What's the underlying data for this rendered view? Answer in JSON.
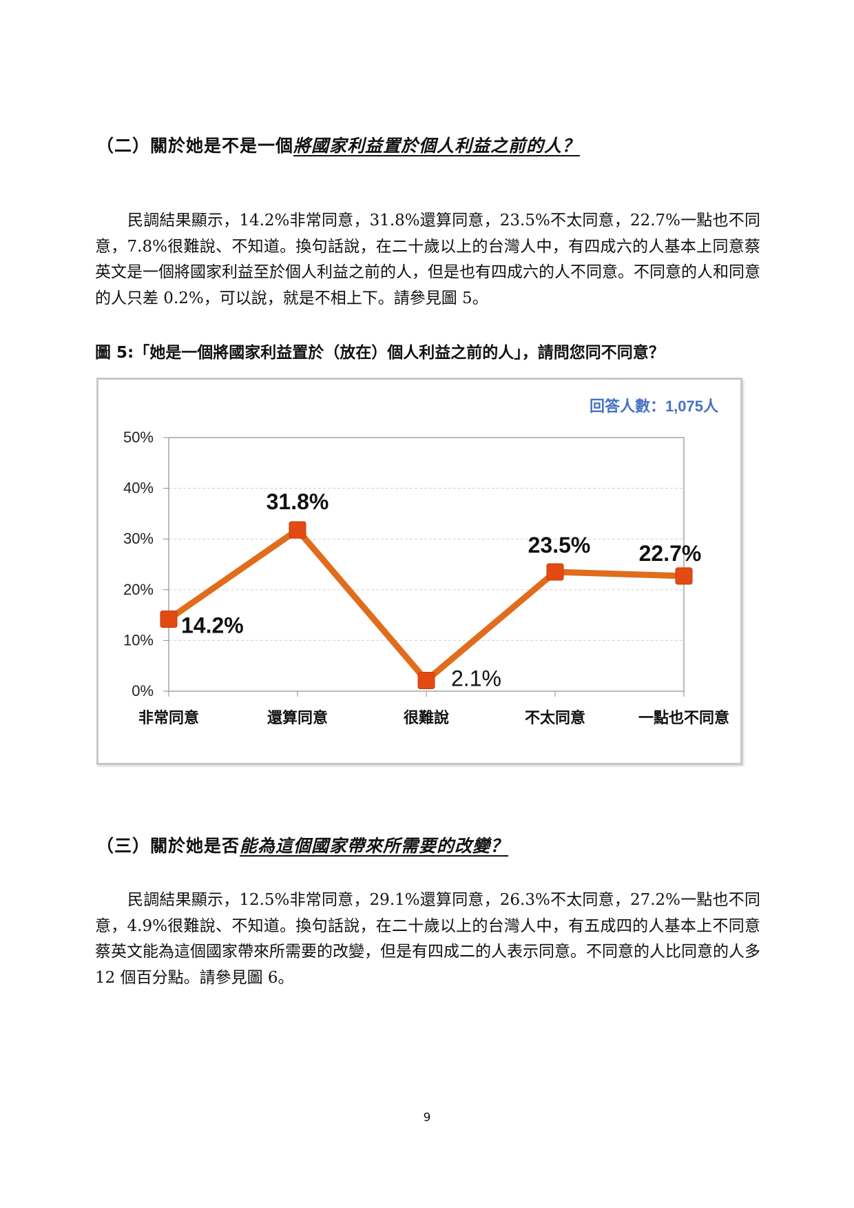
{
  "section2": {
    "prefix": "（二）關於她是不是一個",
    "emphasis": "將國家利益置於個人利益之前的人？"
  },
  "paragraph1": "民調結果顯示，14.2%非常同意，31.8%還算同意，23.5%不太同意，22.7%一點也不同意，7.8%很難說、不知道。換句話說，在二十歲以上的台灣人中，有四成六的人基本上同意蔡英文是一個將國家利益至於個人利益之前的人，但是也有四成六的人不同意。不同意的人和同意的人只差 0.2%，可以說，就是不相上下。請參見圖 5。",
  "figure5_caption": "圖 5:「她是一個將國家利益置於（放在）個人利益之前的人」，請問您同不同意？",
  "chart_data": {
    "type": "line",
    "categories": [
      "非常同意",
      "還算同意",
      "很難說",
      "不太同意",
      "一點也不同意"
    ],
    "values": [
      14.2,
      31.8,
      2.1,
      23.5,
      22.7
    ],
    "data_labels": [
      "14.2%",
      "31.8%",
      "2.1%",
      "23.5%",
      "22.7%"
    ],
    "y_ticks": [
      "0%",
      "10%",
      "20%",
      "30%",
      "40%",
      "50%"
    ],
    "ylim": [
      0,
      50
    ],
    "annotation": "回答人數：1,075人",
    "grid": true,
    "line_color": "#e06c1c",
    "marker_color": "#e34a12",
    "annotation_color": "#4472c4"
  },
  "section3": {
    "prefix": "（三）關於她是否",
    "emphasis": "能為這個國家帶來所需要的改變？"
  },
  "paragraph2": "民調結果顯示，12.5%非常同意，29.1%還算同意，26.3%不太同意，27.2%一點也不同意，4.9%很難說、不知道。換句話說，在二十歲以上的台灣人中，有五成四的人基本上不同意蔡英文能為這個國家帶來所需要的改變，但是有四成二的人表示同意。不同意的人比同意的人多 12 個百分點。請參見圖 6。",
  "page_number": "9"
}
